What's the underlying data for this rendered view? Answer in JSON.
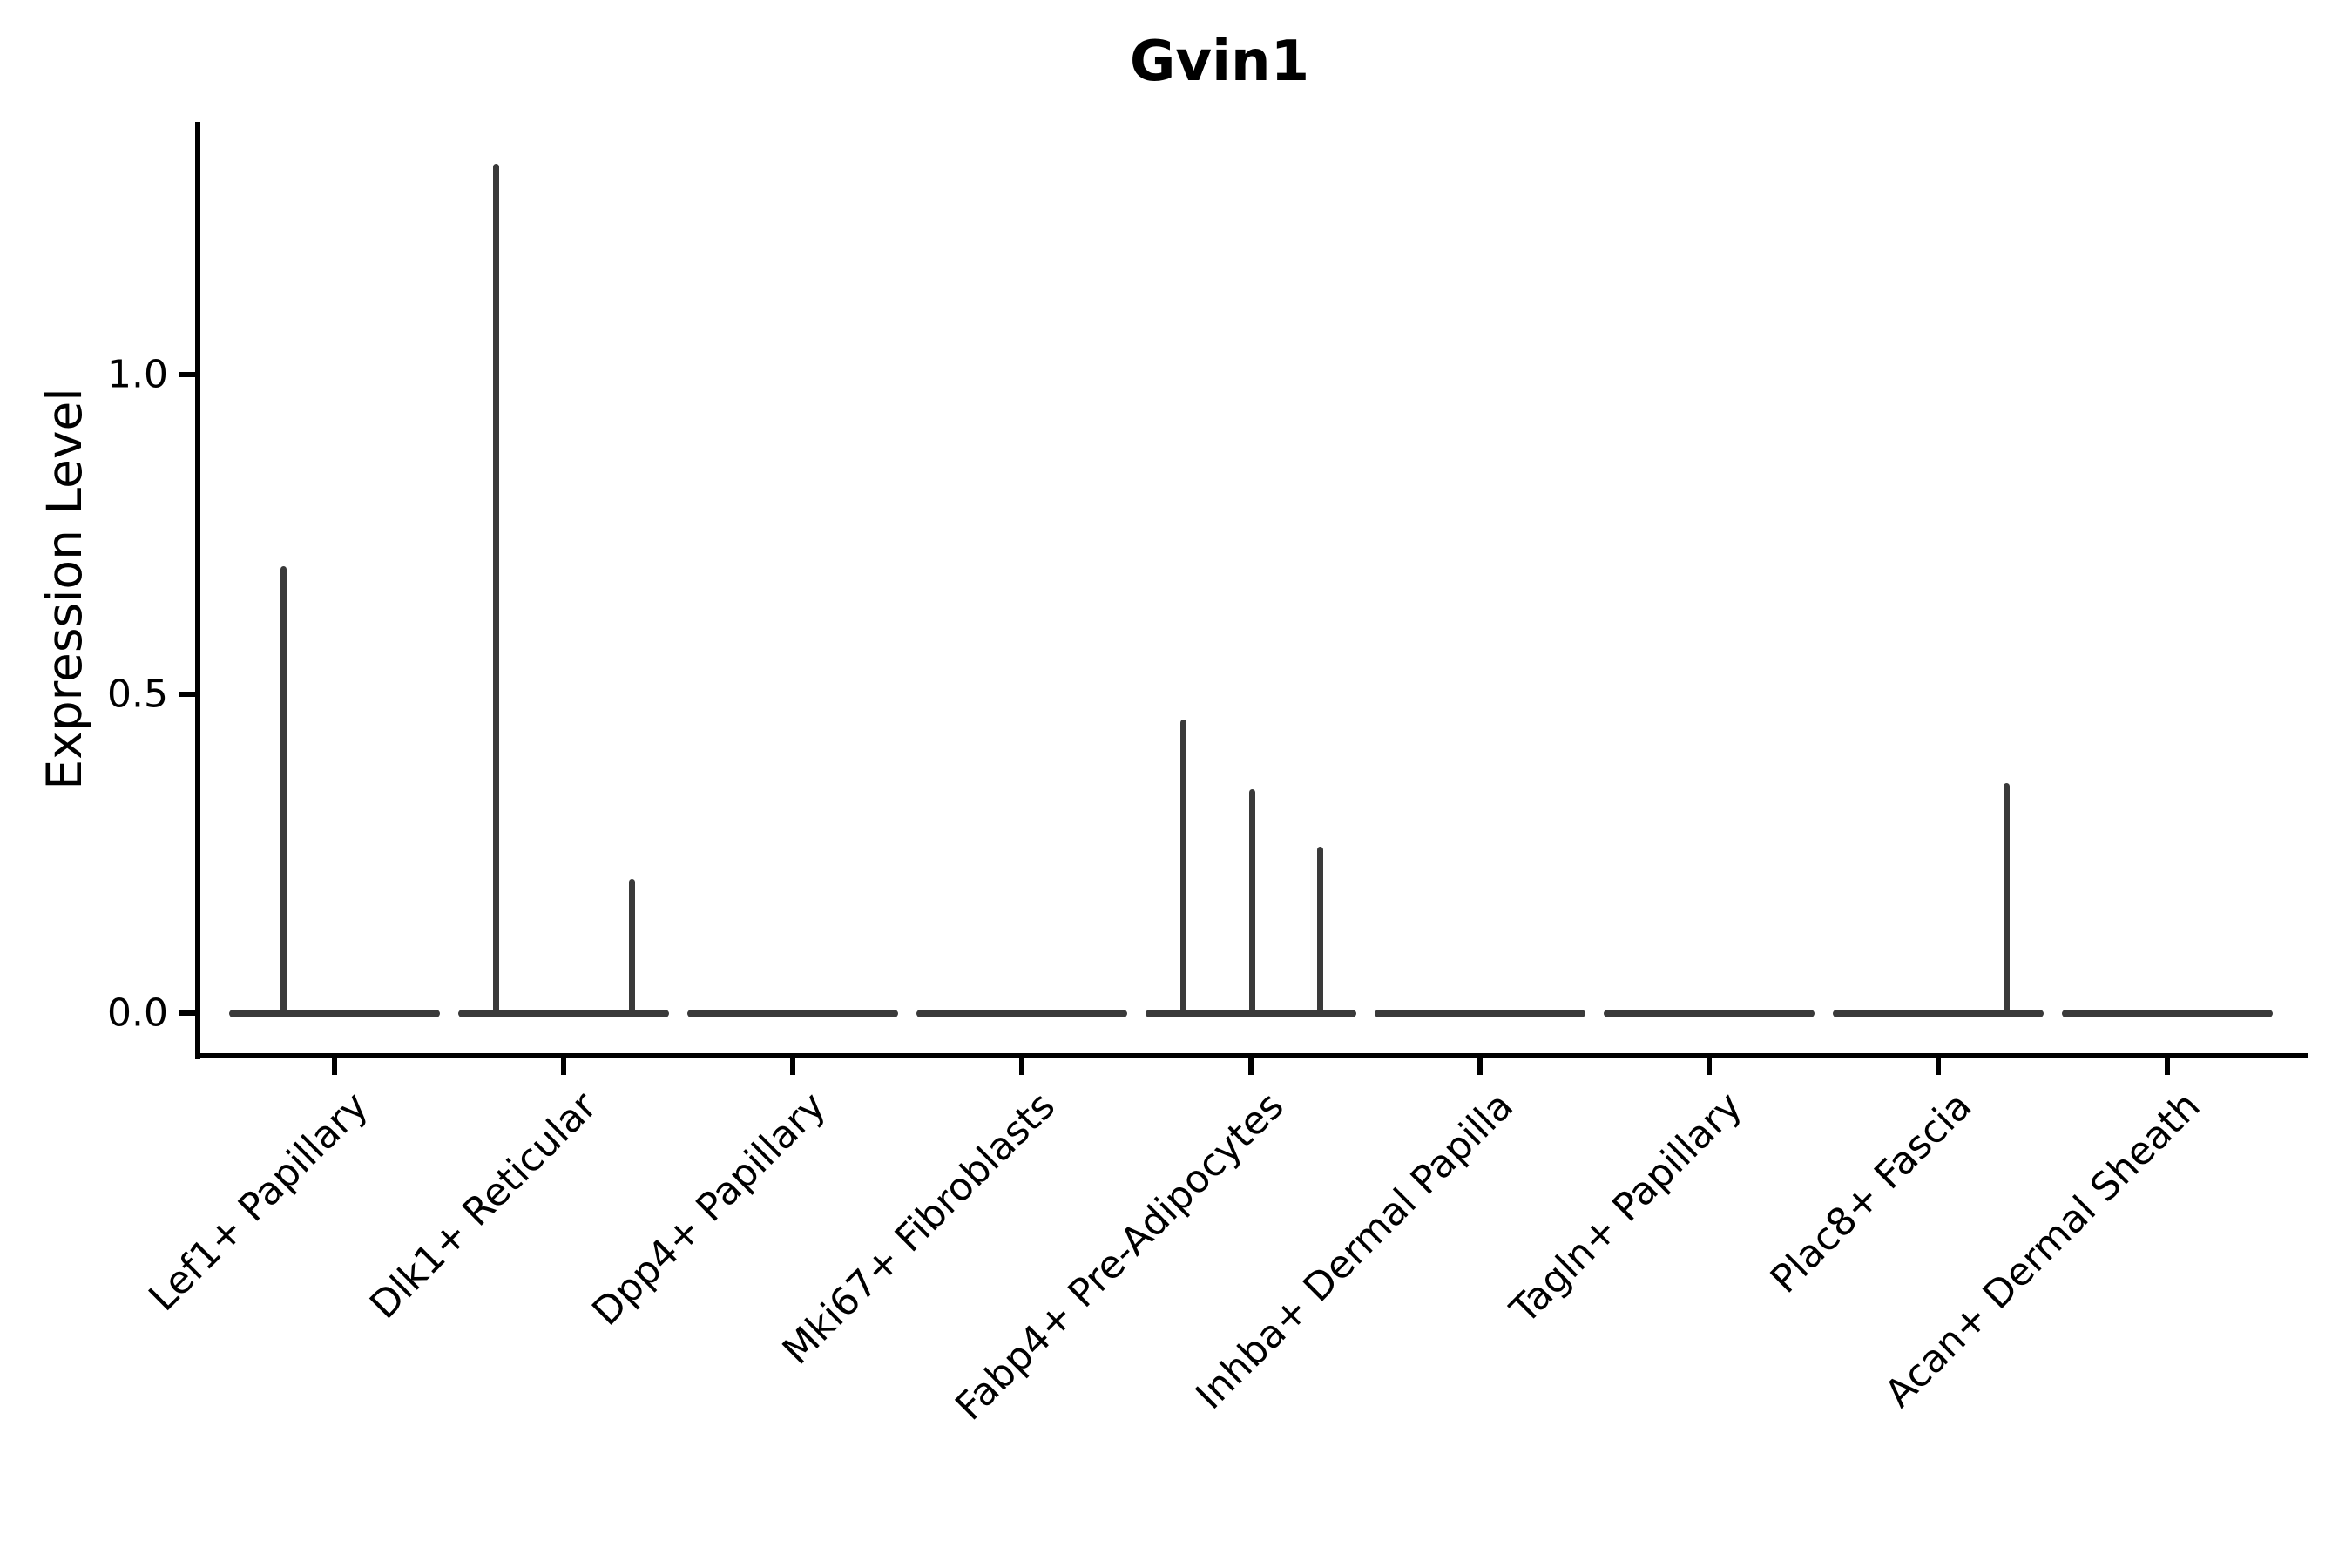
{
  "chart_data": {
    "type": "violin",
    "title": "Gvin1",
    "ylabel": "Expression Level",
    "xlabel": "",
    "yticks": [
      0.0,
      0.5,
      1.0
    ],
    "ytick_labels": [
      "0.0",
      "0.5",
      "1.0"
    ],
    "ylim_visible": [
      -0.12,
      1.4
    ],
    "grid": false,
    "legend": "none",
    "violin_color": "#3A3A3A",
    "axis_color": "#000000",
    "baseline_value": 0.0,
    "categories": [
      {
        "label": "Lef1+ Papillary",
        "spikes": [
          {
            "value": 0.7,
            "offset_frac": -0.48
          }
        ]
      },
      {
        "label": "Dlk1+ Reticular",
        "spikes": [
          {
            "value": 1.33,
            "offset_frac": -0.64
          },
          {
            "value": 0.21,
            "offset_frac": 0.65
          }
        ]
      },
      {
        "label": "Dpp4+ Papillary",
        "spikes": []
      },
      {
        "label": "Mki67+ Fibroblasts",
        "spikes": []
      },
      {
        "label": "Fabp4+ Pre-Adipocytes",
        "spikes": [
          {
            "value": 0.46,
            "offset_frac": -0.64
          },
          {
            "value": 0.35,
            "offset_frac": 0.01
          },
          {
            "value": 0.26,
            "offset_frac": 0.66
          }
        ]
      },
      {
        "label": "Inhba+ Dermal Papilla",
        "spikes": []
      },
      {
        "label": "Tagln+ Papillary",
        "spikes": []
      },
      {
        "label": "Plac8+ Fascia",
        "spikes": [
          {
            "value": 0.36,
            "offset_frac": 0.65
          }
        ]
      },
      {
        "label": "Acan+ Dermal Sheath",
        "spikes": []
      }
    ]
  }
}
